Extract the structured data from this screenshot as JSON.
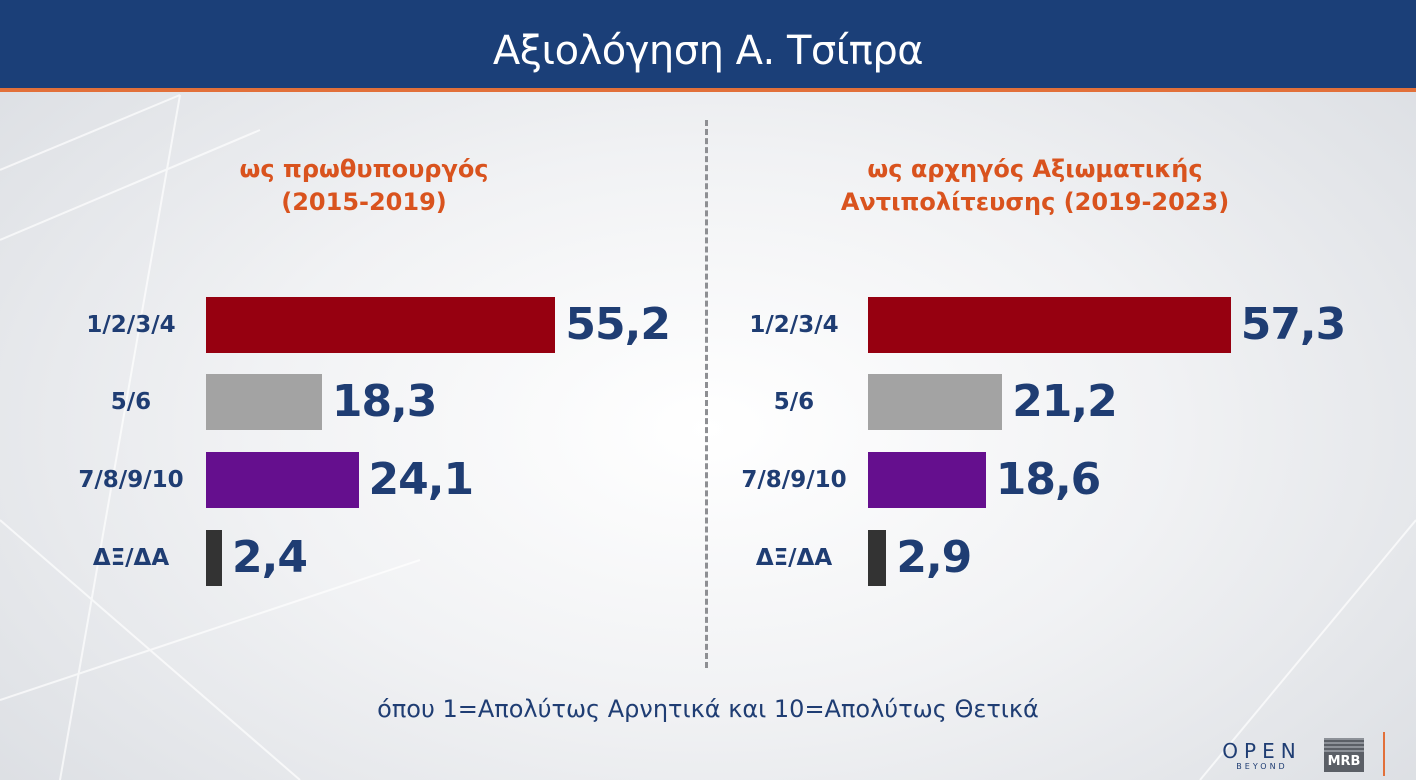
{
  "title": "Αξιολόγηση Α. Τσίπρα",
  "footnote": "όπου 1=Απολύτως Αρνητικά και 10=Απολύτως Θετικά",
  "logos": {
    "open": "OPEN",
    "open_sub": "BEYOND",
    "mrb": "MRB"
  },
  "colors": {
    "header": "#1b3f78",
    "accent": "#e2703a",
    "label": "#1f3d73",
    "subtitle": "#d9531e"
  },
  "chart_data": [
    {
      "type": "bar",
      "orientation": "horizontal",
      "title": "ως πρωθυπουργός (2015-2019)",
      "title_lines": [
        "ως πρωθυπουργός",
        "(2015-2019)"
      ],
      "categories": [
        "1/2/3/4",
        "5/6",
        "7/8/9/10",
        "ΔΞ/ΔΑ"
      ],
      "values": [
        55.2,
        18.3,
        24.1,
        2.4
      ],
      "value_labels": [
        "55,2",
        "18,3",
        "24,1",
        "2,4"
      ],
      "colors": [
        "#960010",
        "#a3a3a3",
        "#650f8e",
        "#333333"
      ],
      "xlim": [
        0,
        60
      ],
      "grid": false
    },
    {
      "type": "bar",
      "orientation": "horizontal",
      "title": "ως αρχηγός Αξιωματικής Αντιπολίτευσης (2019-2023)",
      "title_lines": [
        "ως αρχηγός Αξιωματικής",
        "Αντιπολίτευσης (2019-2023)"
      ],
      "categories": [
        "1/2/3/4",
        "5/6",
        "7/8/9/10",
        "ΔΞ/ΔΑ"
      ],
      "values": [
        57.3,
        21.2,
        18.6,
        2.9
      ],
      "value_labels": [
        "57,3",
        "21,2",
        "18,6",
        "2,9"
      ],
      "colors": [
        "#960010",
        "#a3a3a3",
        "#650f8e",
        "#333333"
      ],
      "xlim": [
        0,
        60
      ],
      "grid": false
    }
  ]
}
